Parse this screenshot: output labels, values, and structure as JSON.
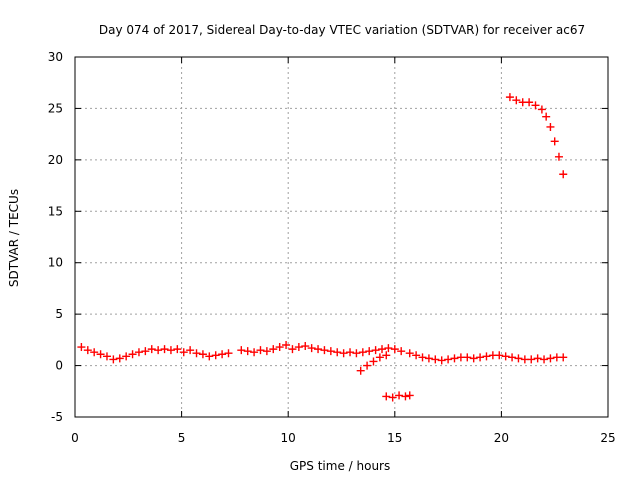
{
  "chart_data": {
    "type": "scatter",
    "title": "Day 074 of 2017, Sidereal Day-to-day VTEC variation (SDTVAR) for receiver ac67",
    "xlabel": "GPS time / hours",
    "ylabel": "SDTVAR / TECUs",
    "xlim": [
      0,
      25
    ],
    "ylim": [
      -5,
      30
    ],
    "xticks": [
      0,
      5,
      10,
      15,
      20,
      25
    ],
    "yticks": [
      -5,
      0,
      5,
      10,
      15,
      20,
      25,
      30
    ],
    "grid": true,
    "legend": "none",
    "marker": "plus",
    "series_color": "#ff0000",
    "series": [
      {
        "name": "SDTVAR",
        "points": [
          [
            0.3,
            1.8
          ],
          [
            0.6,
            1.5
          ],
          [
            0.9,
            1.3
          ],
          [
            1.2,
            1.1
          ],
          [
            1.5,
            0.9
          ],
          [
            1.8,
            0.6
          ],
          [
            2.1,
            0.7
          ],
          [
            2.4,
            0.9
          ],
          [
            2.7,
            1.1
          ],
          [
            3.0,
            1.3
          ],
          [
            3.3,
            1.4
          ],
          [
            3.6,
            1.6
          ],
          [
            3.9,
            1.5
          ],
          [
            4.2,
            1.6
          ],
          [
            4.5,
            1.5
          ],
          [
            4.8,
            1.6
          ],
          [
            5.1,
            1.3
          ],
          [
            5.4,
            1.5
          ],
          [
            5.7,
            1.2
          ],
          [
            6.0,
            1.1
          ],
          [
            6.3,
            0.9
          ],
          [
            6.6,
            1.0
          ],
          [
            6.9,
            1.1
          ],
          [
            7.2,
            1.2
          ],
          [
            7.8,
            1.5
          ],
          [
            8.1,
            1.4
          ],
          [
            8.4,
            1.3
          ],
          [
            8.7,
            1.5
          ],
          [
            9.0,
            1.4
          ],
          [
            9.3,
            1.6
          ],
          [
            9.6,
            1.8
          ],
          [
            9.9,
            2.0
          ],
          [
            10.2,
            1.6
          ],
          [
            10.5,
            1.8
          ],
          [
            10.8,
            1.9
          ],
          [
            11.1,
            1.7
          ],
          [
            11.4,
            1.6
          ],
          [
            11.7,
            1.5
          ],
          [
            12.0,
            1.4
          ],
          [
            12.3,
            1.3
          ],
          [
            12.6,
            1.2
          ],
          [
            12.9,
            1.3
          ],
          [
            13.2,
            1.2
          ],
          [
            13.5,
            1.3
          ],
          [
            13.8,
            1.4
          ],
          [
            14.1,
            1.5
          ],
          [
            14.4,
            1.6
          ],
          [
            14.7,
            1.7
          ],
          [
            15.0,
            1.6
          ],
          [
            15.3,
            1.4
          ],
          [
            13.4,
            -0.5
          ],
          [
            13.7,
            0.0
          ],
          [
            14.0,
            0.4
          ],
          [
            14.3,
            0.8
          ],
          [
            14.6,
            1.0
          ],
          [
            14.6,
            -3.0
          ],
          [
            14.9,
            -3.1
          ],
          [
            15.2,
            -2.9
          ],
          [
            15.5,
            -3.0
          ],
          [
            15.7,
            -2.9
          ],
          [
            15.7,
            1.2
          ],
          [
            16.0,
            1.0
          ],
          [
            16.3,
            0.8
          ],
          [
            16.6,
            0.7
          ],
          [
            16.9,
            0.6
          ],
          [
            17.2,
            0.5
          ],
          [
            17.5,
            0.6
          ],
          [
            17.8,
            0.7
          ],
          [
            18.1,
            0.8
          ],
          [
            18.4,
            0.8
          ],
          [
            18.7,
            0.7
          ],
          [
            19.0,
            0.8
          ],
          [
            19.3,
            0.9
          ],
          [
            19.6,
            1.0
          ],
          [
            19.9,
            1.0
          ],
          [
            20.2,
            0.9
          ],
          [
            20.5,
            0.8
          ],
          [
            20.8,
            0.7
          ],
          [
            21.1,
            0.6
          ],
          [
            21.4,
            0.6
          ],
          [
            21.7,
            0.7
          ],
          [
            22.0,
            0.6
          ],
          [
            22.3,
            0.7
          ],
          [
            22.6,
            0.8
          ],
          [
            22.9,
            0.8
          ],
          [
            20.4,
            26.1
          ],
          [
            20.7,
            25.8
          ],
          [
            21.0,
            25.6
          ],
          [
            21.3,
            25.6
          ],
          [
            21.6,
            25.3
          ],
          [
            21.9,
            24.9
          ],
          [
            22.1,
            24.2
          ],
          [
            22.3,
            23.2
          ],
          [
            22.5,
            21.8
          ],
          [
            22.7,
            20.3
          ],
          [
            22.9,
            18.6
          ]
        ]
      }
    ]
  }
}
